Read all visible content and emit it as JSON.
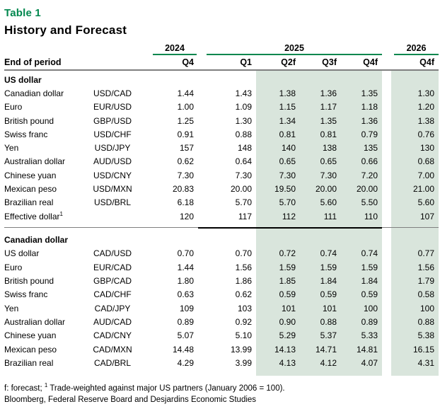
{
  "title": "Table 1",
  "subtitle": "History and Forecast",
  "colors": {
    "accent_green": "#00874E",
    "forecast_shade": "#D9E5DC",
    "header_rule_gray": "#7F7F7F",
    "section_divider_black": "#000000"
  },
  "table": {
    "end_of_period_label": "End of period",
    "year_groups": [
      {
        "year": "2024",
        "quarters": [
          "Q4"
        ]
      },
      {
        "year": "2025",
        "quarters": [
          "Q1",
          "Q2f",
          "Q3f",
          "Q4f"
        ]
      },
      {
        "year": "2026",
        "quarters": [
          "Q4f"
        ]
      }
    ],
    "forecast_shaded_columns": [
      "Q2f 2025",
      "Q3f 2025",
      "Q4f 2025",
      "Q4f 2026"
    ],
    "sections": [
      {
        "name": "US dollar",
        "rows": [
          {
            "label": "Canadian dollar",
            "pair": "USD/CAD",
            "values": [
              "1.44",
              "1.43",
              "1.38",
              "1.36",
              "1.35",
              "1.30"
            ]
          },
          {
            "label": "Euro",
            "pair": "EUR/USD",
            "values": [
              "1.00",
              "1.09",
              "1.15",
              "1.17",
              "1.18",
              "1.20"
            ]
          },
          {
            "label": "British pound",
            "pair": "GBP/USD",
            "values": [
              "1.25",
              "1.30",
              "1.34",
              "1.35",
              "1.36",
              "1.38"
            ]
          },
          {
            "label": "Swiss franc",
            "pair": "USD/CHF",
            "values": [
              "0.91",
              "0.88",
              "0.81",
              "0.81",
              "0.79",
              "0.76"
            ]
          },
          {
            "label": "Yen",
            "pair": "USD/JPY",
            "values": [
              "157",
              "148",
              "140",
              "138",
              "135",
              "130"
            ]
          },
          {
            "label": "Australian dollar",
            "pair": "AUD/USD",
            "values": [
              "0.62",
              "0.64",
              "0.65",
              "0.65",
              "0.66",
              "0.68"
            ]
          },
          {
            "label": "Chinese yuan",
            "pair": "USD/CNY",
            "values": [
              "7.30",
              "7.30",
              "7.30",
              "7.30",
              "7.20",
              "7.00"
            ]
          },
          {
            "label": "Mexican peso",
            "pair": "USD/MXN",
            "values": [
              "20.83",
              "20.00",
              "19.50",
              "20.00",
              "20.00",
              "21.00"
            ]
          },
          {
            "label": "Brazilian real",
            "pair": "USD/BRL",
            "values": [
              "6.18",
              "5.70",
              "5.70",
              "5.60",
              "5.50",
              "5.60"
            ]
          },
          {
            "label": "Effective dollar",
            "sup": "1",
            "pair": "",
            "values": [
              "120",
              "117",
              "112",
              "111",
              "110",
              "107"
            ],
            "divider_after": true
          }
        ]
      },
      {
        "name": "Canadian dollar",
        "rows": [
          {
            "label": "US dollar",
            "pair": "CAD/USD",
            "values": [
              "0.70",
              "0.70",
              "0.72",
              "0.74",
              "0.74",
              "0.77"
            ]
          },
          {
            "label": "Euro",
            "pair": "EUR/CAD",
            "values": [
              "1.44",
              "1.56",
              "1.59",
              "1.59",
              "1.59",
              "1.56"
            ]
          },
          {
            "label": "British pound",
            "pair": "GBP/CAD",
            "values": [
              "1.80",
              "1.86",
              "1.85",
              "1.84",
              "1.84",
              "1.79"
            ]
          },
          {
            "label": "Swiss franc",
            "pair": "CAD/CHF",
            "values": [
              "0.63",
              "0.62",
              "0.59",
              "0.59",
              "0.59",
              "0.58"
            ]
          },
          {
            "label": "Yen",
            "pair": "CAD/JPY",
            "values": [
              "109",
              "103",
              "101",
              "101",
              "100",
              "100"
            ]
          },
          {
            "label": "Australian dollar",
            "pair": "AUD/CAD",
            "values": [
              "0.89",
              "0.92",
              "0.90",
              "0.88",
              "0.89",
              "0.88"
            ]
          },
          {
            "label": "Chinese yuan",
            "pair": "CAD/CNY",
            "values": [
              "5.07",
              "5.10",
              "5.29",
              "5.37",
              "5.33",
              "5.38"
            ]
          },
          {
            "label": "Mexican peso",
            "pair": "CAD/MXN",
            "values": [
              "14.48",
              "13.99",
              "14.13",
              "14.71",
              "14.81",
              "16.15"
            ]
          },
          {
            "label": "Brazilian real",
            "pair": "CAD/BRL",
            "values": [
              "4.29",
              "3.99",
              "4.13",
              "4.12",
              "4.07",
              "4.31"
            ]
          }
        ]
      }
    ]
  },
  "footnotes": {
    "line1_prefix": "f: forecast; ",
    "line1_sup": "1",
    "line1_text": " Trade-weighted against major US partners (January 2006 = 100).",
    "line2": "Bloomberg, Federal Reserve Board and Desjardins Economic Studies"
  }
}
